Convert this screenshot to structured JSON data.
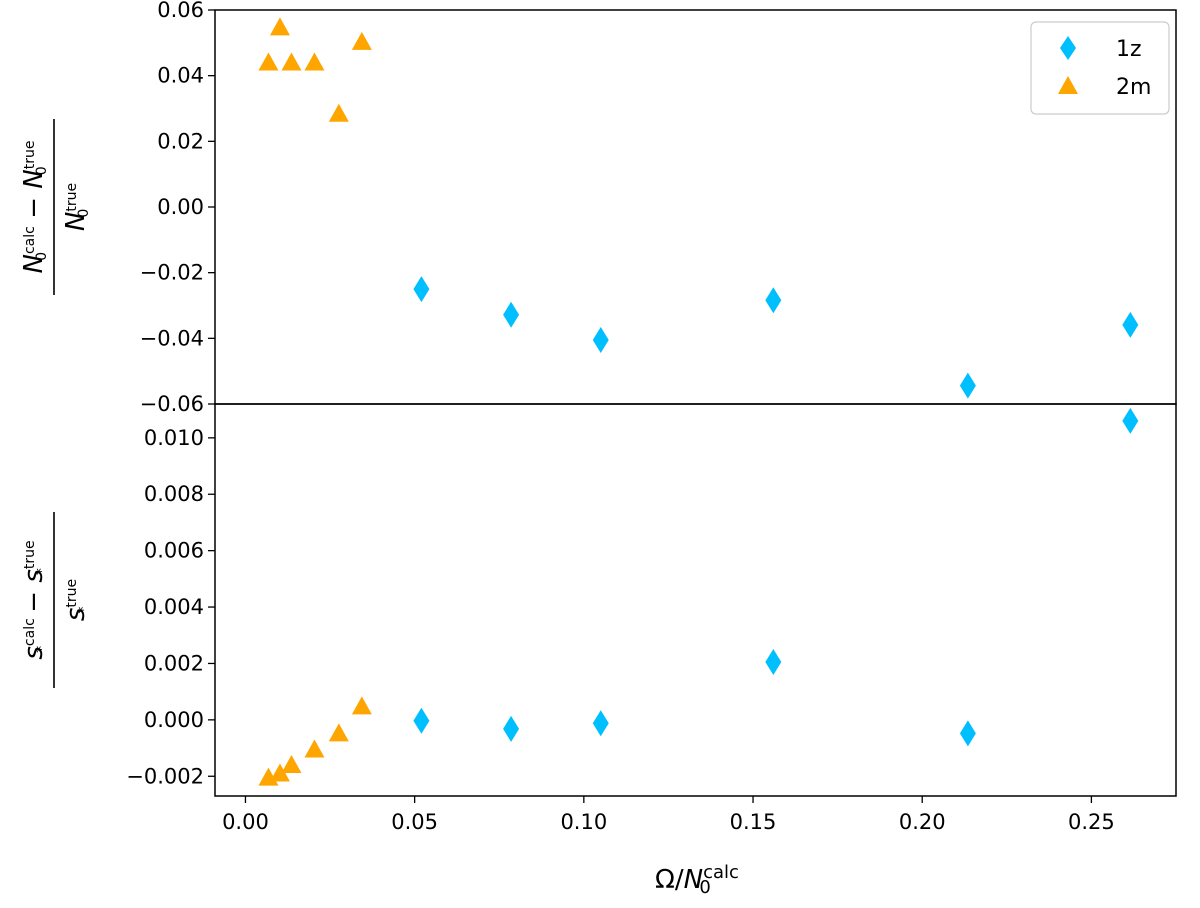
{
  "chart_data": [
    {
      "type": "scatter",
      "panel": "top",
      "title": "",
      "xlabel": "",
      "ylabel_parts": {
        "numerator_main_1": "N",
        "numerator_sub_1": "0",
        "numerator_sup_1": "calc",
        "minus": "−",
        "numerator_main_2": "N",
        "numerator_sub_2": "0",
        "numerator_sup_2": "true",
        "denominator_main": "N",
        "denominator_sub": "0",
        "denominator_sup": "true"
      },
      "ylim": [
        -0.06,
        0.06
      ],
      "xlim": [
        -0.009,
        0.275
      ],
      "yticks": [
        -0.06,
        -0.04,
        -0.02,
        0.0,
        0.02,
        0.04,
        0.06
      ],
      "ytick_labels": [
        "−0.06",
        "−0.04",
        "−0.02",
        "0.00",
        "0.02",
        "0.04",
        "0.06"
      ],
      "legend": {
        "placement": "top-right",
        "entries": [
          "1z",
          "2m"
        ]
      },
      "series": [
        {
          "name": "1z",
          "marker": "diamond",
          "color": "#00bfff",
          "x": [
            0.052,
            0.0785,
            0.105,
            0.156,
            0.2135,
            0.2615
          ],
          "y": [
            -0.025,
            -0.0328,
            -0.0405,
            -0.0284,
            -0.0544,
            -0.0359
          ]
        },
        {
          "name": "2m",
          "marker": "triangle",
          "color": "#ffa500",
          "x": [
            0.0068,
            0.0102,
            0.0136,
            0.0204,
            0.0276,
            0.0344
          ],
          "y": [
            0.044,
            0.0547,
            0.044,
            0.044,
            0.0284,
            0.0503
          ]
        }
      ]
    },
    {
      "type": "scatter",
      "panel": "bottom",
      "title": "",
      "xlabel_parts": {
        "main": "Ω/N",
        "sub": "0",
        "sup": "calc"
      },
      "ylabel_parts": {
        "numerator_main_1": "s",
        "numerator_sub_1": "*",
        "numerator_sup_1": "calc",
        "minus": "−",
        "numerator_main_2": "s",
        "numerator_sub_2": "*",
        "numerator_sup_2": "true",
        "denominator_main": "s",
        "denominator_sub": "*",
        "denominator_sup": "true"
      },
      "ylim": [
        -0.0027,
        0.0112
      ],
      "xlim": [
        -0.009,
        0.275
      ],
      "yticks": [
        -0.002,
        0.0,
        0.002,
        0.004,
        0.006,
        0.008,
        0.01
      ],
      "ytick_labels": [
        "−0.002",
        "0.000",
        "0.002",
        "0.004",
        "0.006",
        "0.008",
        "0.010"
      ],
      "xticks": [
        0.0,
        0.05,
        0.1,
        0.15,
        0.2,
        0.25
      ],
      "xtick_labels": [
        "0.00",
        "0.05",
        "0.10",
        "0.15",
        "0.20",
        "0.25"
      ],
      "series": [
        {
          "name": "1z",
          "marker": "diamond",
          "color": "#00bfff",
          "x": [
            0.052,
            0.0785,
            0.105,
            0.156,
            0.2135,
            0.2615
          ],
          "y": [
            -3e-05,
            -0.00032,
            -0.00012,
            0.00205,
            -0.00048,
            0.0106
          ]
        },
        {
          "name": "2m",
          "marker": "triangle",
          "color": "#ffa500",
          "x": [
            0.0068,
            0.0102,
            0.0136,
            0.0204,
            0.0276,
            0.0344
          ],
          "y": [
            -0.00205,
            -0.0019,
            -0.0016,
            -0.00105,
            -0.00048,
            0.00048
          ]
        }
      ]
    }
  ]
}
